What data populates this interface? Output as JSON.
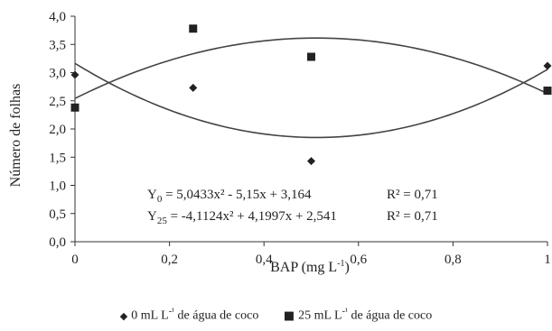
{
  "chart_data": {
    "type": "scatter",
    "ylabel": "Número de folhas",
    "xlabel": "BAP (mg L",
    "xlabel_sup": "-1",
    "xlabel_tail": ")",
    "xlim": [
      0,
      1
    ],
    "ylim": [
      0,
      4
    ],
    "x_ticks": [
      "0",
      "0,2",
      "0,4",
      "0,6",
      "0,8",
      "1"
    ],
    "x_tick_values": [
      0,
      0.2,
      0.4,
      0.6,
      0.8,
      1
    ],
    "y_ticks": [
      "0,0",
      "0,5",
      "1,0",
      "1,5",
      "2,0",
      "2,5",
      "3,0",
      "3,5",
      "4,0"
    ],
    "y_tick_values": [
      0,
      0.5,
      1,
      1.5,
      2,
      2.5,
      3,
      3.5,
      4
    ],
    "grid": false,
    "legend_position": "bottom",
    "series": [
      {
        "name": "0 mL L-¹ de água de coco",
        "legend_prefix": "0 mL L",
        "legend_sup": "-¹",
        "legend_suffix": " de água de coco",
        "marker": "diamond",
        "color": "#222222",
        "x": [
          0,
          0.25,
          0.5,
          1
        ],
        "y": [
          2.96,
          2.73,
          1.43,
          3.12
        ],
        "fit": {
          "a": 5.0433,
          "b": -5.15,
          "c": 3.164
        }
      },
      {
        "name": "25 mL L-¹ de água de coco",
        "legend_prefix": "25 mL L",
        "legend_sup": "-¹",
        "legend_suffix": " de água de coco",
        "marker": "square",
        "color": "#222222",
        "x": [
          0,
          0.25,
          0.5,
          1
        ],
        "y": [
          2.38,
          3.78,
          3.28,
          2.68
        ],
        "fit": {
          "a": -4.1124,
          "b": 4.1997,
          "c": 2.541
        }
      }
    ],
    "annotations": [
      {
        "y_label": "Y",
        "y_sub": "0",
        "equation": " = 5,0433x² - 5,15x + 3,164",
        "r2": "R² = 0,71"
      },
      {
        "y_label": "Y",
        "y_sub": "25",
        "equation": " = -4,1124x² + 4,1997x + 2,541",
        "r2": "R² = 0,71"
      }
    ]
  }
}
